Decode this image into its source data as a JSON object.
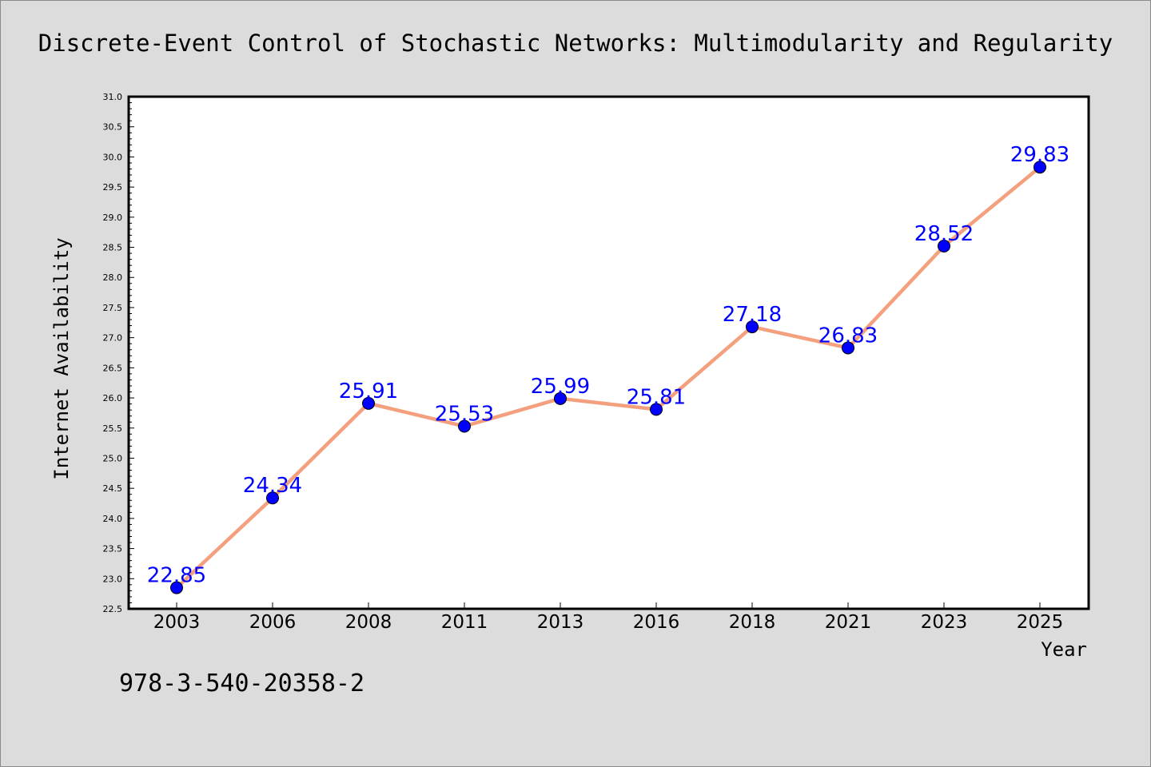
{
  "chart_data": {
    "type": "line",
    "title": "Discrete-Event Control of Stochastic Networks: Multimodularity and Regularity",
    "xlabel": "Year",
    "ylabel": "Internet Availability",
    "categories": [
      "2003",
      "2006",
      "2008",
      "2011",
      "2013",
      "2016",
      "2018",
      "2021",
      "2023",
      "2025"
    ],
    "series": [
      {
        "values": [
          22.85,
          24.34,
          25.91,
          25.53,
          25.99,
          25.81,
          27.18,
          26.83,
          28.52,
          29.83
        ],
        "data_labels": [
          "22.85",
          "24.34",
          "25.91",
          "25.53",
          "25.99",
          "25.81",
          "27.18",
          "26.83",
          "28.52",
          "29.83"
        ]
      }
    ],
    "ylim": [
      22.5,
      31.0
    ],
    "yticks": [
      "22.5",
      "23.0",
      "23.5",
      "24.0",
      "24.5",
      "25.0",
      "25.5",
      "26.0",
      "26.5",
      "27.0",
      "27.5",
      "28.0",
      "28.5",
      "29.0",
      "29.5",
      "30.0",
      "30.5",
      "31.0"
    ],
    "grid": false,
    "legend": "none",
    "colors": {
      "line": "#f4a07e",
      "marker": "#0000ff",
      "data_label": "#0000ff",
      "background": "#dcdcdc",
      "plot_background": "#ffffff"
    }
  },
  "annotation": "978-3-540-20358-2"
}
